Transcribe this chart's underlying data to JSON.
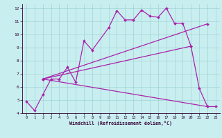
{
  "background_color": "#c8eef0",
  "line_color": "#aa22aa",
  "xlim": [
    -0.5,
    23.5
  ],
  "ylim": [
    4,
    12.3
  ],
  "xticks": [
    0,
    1,
    2,
    3,
    4,
    5,
    6,
    7,
    8,
    9,
    10,
    11,
    12,
    13,
    14,
    15,
    16,
    17,
    18,
    19,
    20,
    21,
    22,
    23
  ],
  "yticks": [
    4,
    5,
    6,
    7,
    8,
    9,
    10,
    11,
    12
  ],
  "xlabel": "Windchill (Refroidissement éolien,°C)",
  "series": [
    {
      "x": [
        0,
        1,
        2,
        3,
        4,
        5,
        6,
        7,
        8,
        10,
        11,
        12,
        13,
        14,
        15,
        16,
        17,
        18,
        19,
        20,
        21,
        22,
        23
      ],
      "y": [
        4.9,
        4.2,
        5.4,
        6.6,
        6.6,
        7.5,
        6.35,
        9.5,
        8.8,
        10.5,
        11.8,
        11.1,
        11.1,
        11.85,
        11.4,
        11.3,
        12.0,
        10.85,
        10.85,
        9.1,
        5.9,
        4.5,
        4.5
      ]
    },
    {
      "x": [
        2,
        22
      ],
      "y": [
        6.6,
        10.8
      ]
    },
    {
      "x": [
        2,
        22
      ],
      "y": [
        6.6,
        4.5
      ]
    },
    {
      "x": [
        2,
        20
      ],
      "y": [
        6.6,
        9.1
      ]
    }
  ]
}
